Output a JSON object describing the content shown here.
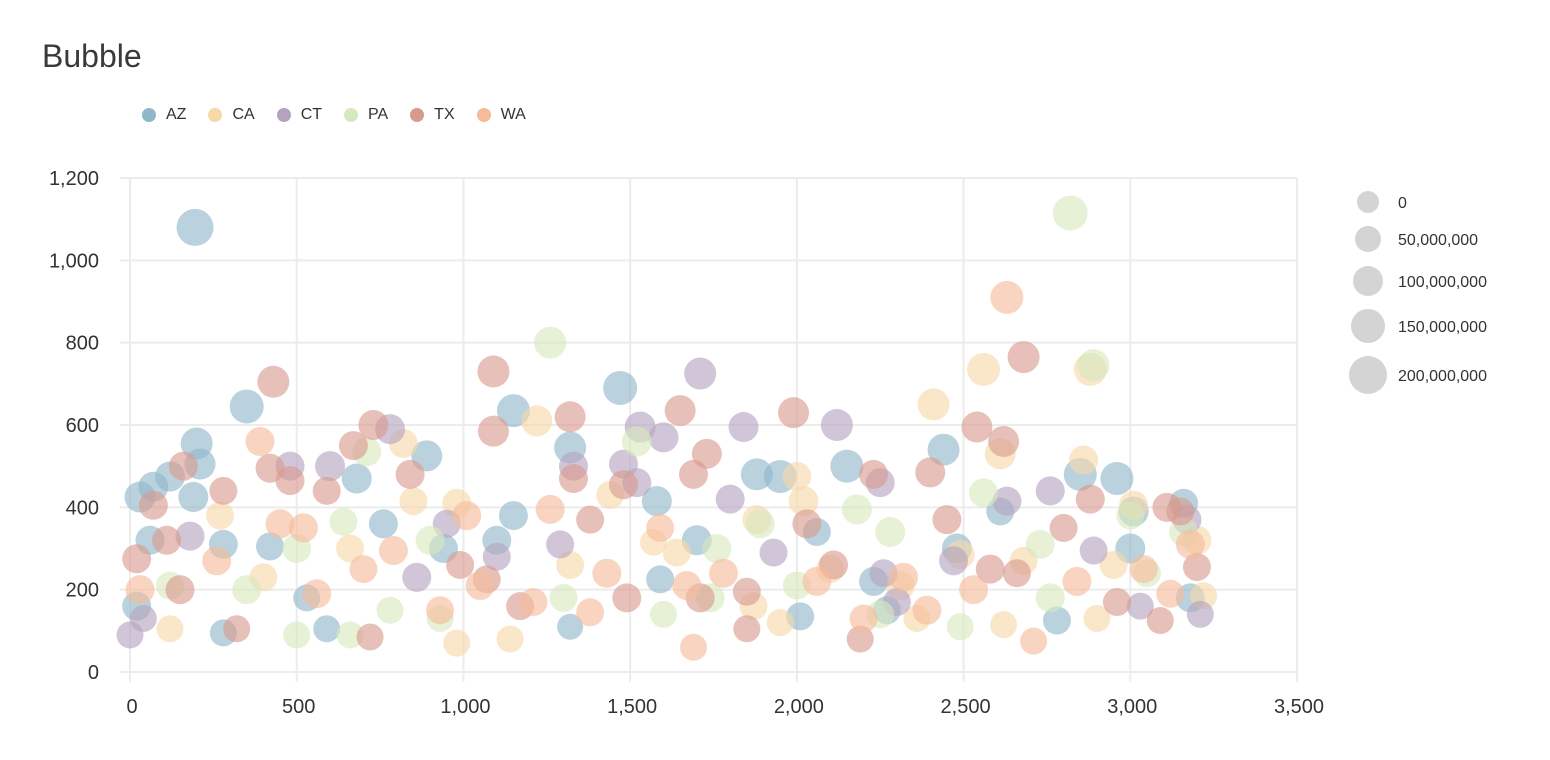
{
  "chart_data": {
    "type": "scatter",
    "variant": "bubble",
    "title": "Bubble",
    "xlabel": "",
    "ylabel": "",
    "xlim": [
      0,
      3500
    ],
    "ylim": [
      0,
      1200
    ],
    "x_ticks": [
      0,
      500,
      1000,
      1500,
      2000,
      2500,
      3000,
      3500
    ],
    "x_tick_labels": [
      "0",
      "500",
      "1,000",
      "1,500",
      "2,000",
      "2,500",
      "3,000",
      "3,500"
    ],
    "y_ticks": [
      0,
      200,
      400,
      600,
      800,
      1000,
      1200
    ],
    "y_tick_labels": [
      "0",
      "200",
      "400",
      "600",
      "800",
      "1,000",
      "1,200"
    ],
    "grid": true,
    "legend_position": "top-left",
    "size_legend_position": "right",
    "size_legend": [
      {
        "label": "0",
        "value": 0
      },
      {
        "label": "50,000,000",
        "value": 50000000
      },
      {
        "label": "100,000,000",
        "value": 100000000
      },
      {
        "label": "150,000,000",
        "value": 150000000
      },
      {
        "label": "200,000,000",
        "value": 200000000
      }
    ],
    "size_max": 200000000,
    "series": [
      {
        "name": "AZ",
        "color": "#8fb6c9",
        "points": [
          [
            195,
            1080,
            190000000
          ],
          [
            350,
            645,
            160000000
          ],
          [
            200,
            555,
            140000000
          ],
          [
            210,
            505,
            130000000
          ],
          [
            1470,
            690,
            160000000
          ],
          [
            1150,
            635,
            150000000
          ],
          [
            1320,
            545,
            140000000
          ],
          [
            2150,
            500,
            150000000
          ],
          [
            1580,
            415,
            120000000
          ],
          [
            1950,
            475,
            150000000
          ],
          [
            1880,
            480,
            140000000
          ],
          [
            2440,
            540,
            140000000
          ],
          [
            2960,
            470,
            150000000
          ],
          [
            2850,
            480,
            150000000
          ],
          [
            890,
            525,
            130000000
          ],
          [
            120,
            475,
            120000000
          ],
          [
            30,
            425,
            130000000
          ],
          [
            70,
            450,
            120000000
          ],
          [
            190,
            425,
            120000000
          ],
          [
            680,
            470,
            120000000
          ],
          [
            760,
            360,
            110000000
          ],
          [
            1150,
            380,
            110000000
          ],
          [
            3010,
            390,
            120000000
          ],
          [
            3160,
            410,
            110000000
          ],
          [
            2610,
            390,
            100000000
          ],
          [
            60,
            320,
            110000000
          ],
          [
            280,
            310,
            110000000
          ],
          [
            530,
            180,
            90000000
          ],
          [
            20,
            160,
            110000000
          ],
          [
            590,
            105,
            90000000
          ],
          [
            280,
            95,
            90000000
          ],
          [
            1320,
            110,
            80000000
          ],
          [
            2010,
            135,
            100000000
          ],
          [
            2780,
            125,
            100000000
          ],
          [
            3180,
            180,
            110000000
          ],
          [
            940,
            300,
            110000000
          ],
          [
            1590,
            225,
            100000000
          ],
          [
            2230,
            220,
            110000000
          ],
          [
            2480,
            300,
            120000000
          ],
          [
            3000,
            300,
            120000000
          ],
          [
            420,
            305,
            100000000
          ],
          [
            1100,
            320,
            110000000
          ],
          [
            1700,
            320,
            120000000
          ],
          [
            2060,
            340,
            100000000
          ],
          [
            2270,
            150,
            100000000
          ]
        ]
      },
      {
        "name": "CA",
        "color": "#f7d8a9",
        "points": [
          [
            2560,
            735,
            150000000
          ],
          [
            2880,
            735,
            150000000
          ],
          [
            1220,
            610,
            130000000
          ],
          [
            2410,
            650,
            140000000
          ],
          [
            2610,
            530,
            130000000
          ],
          [
            2860,
            515,
            110000000
          ],
          [
            2000,
            475,
            110000000
          ],
          [
            2020,
            415,
            120000000
          ],
          [
            1440,
            430,
            100000000
          ],
          [
            3010,
            405,
            110000000
          ],
          [
            820,
            555,
            110000000
          ],
          [
            850,
            415,
            100000000
          ],
          [
            980,
            410,
            110000000
          ],
          [
            270,
            380,
            100000000
          ],
          [
            1570,
            315,
            90000000
          ],
          [
            1880,
            370,
            110000000
          ],
          [
            2490,
            285,
            110000000
          ],
          [
            2950,
            260,
            100000000
          ],
          [
            3200,
            320,
            110000000
          ],
          [
            3220,
            185,
            90000000
          ],
          [
            120,
            105,
            90000000
          ],
          [
            980,
            70,
            90000000
          ],
          [
            1140,
            80,
            90000000
          ],
          [
            1640,
            290,
            100000000
          ],
          [
            2100,
            250,
            100000000
          ],
          [
            2680,
            270,
            100000000
          ],
          [
            1870,
            160,
            100000000
          ],
          [
            2310,
            210,
            110000000
          ],
          [
            400,
            230,
            100000000
          ],
          [
            660,
            300,
            100000000
          ],
          [
            1320,
            260,
            100000000
          ],
          [
            2360,
            130,
            90000000
          ],
          [
            1950,
            120,
            90000000
          ],
          [
            2620,
            115,
            90000000
          ],
          [
            2900,
            130,
            90000000
          ]
        ]
      },
      {
        "name": "CT",
        "color": "#b5a3be",
        "points": [
          [
            1710,
            725,
            140000000
          ],
          [
            2120,
            600,
            140000000
          ],
          [
            1530,
            595,
            130000000
          ],
          [
            1840,
            595,
            120000000
          ],
          [
            1600,
            570,
            120000000
          ],
          [
            780,
            590,
            120000000
          ],
          [
            600,
            500,
            120000000
          ],
          [
            480,
            500,
            110000000
          ],
          [
            1480,
            505,
            110000000
          ],
          [
            1330,
            500,
            110000000
          ],
          [
            1800,
            420,
            110000000
          ],
          [
            2250,
            460,
            110000000
          ],
          [
            2760,
            440,
            110000000
          ],
          [
            2630,
            415,
            110000000
          ],
          [
            3170,
            370,
            110000000
          ],
          [
            1290,
            310,
            100000000
          ],
          [
            860,
            230,
            110000000
          ],
          [
            180,
            330,
            110000000
          ],
          [
            950,
            360,
            100000000
          ],
          [
            0,
            90,
            90000000
          ],
          [
            40,
            130,
            90000000
          ],
          [
            1930,
            290,
            100000000
          ],
          [
            2470,
            270,
            110000000
          ],
          [
            2890,
            295,
            100000000
          ],
          [
            2300,
            170,
            100000000
          ],
          [
            3210,
            140,
            90000000
          ],
          [
            1520,
            460,
            110000000
          ],
          [
            1100,
            280,
            100000000
          ],
          [
            2260,
            240,
            100000000
          ],
          [
            3030,
            160,
            90000000
          ]
        ]
      },
      {
        "name": "PA",
        "color": "#d6e8bd",
        "points": [
          [
            2820,
            1115,
            170000000
          ],
          [
            1260,
            800,
            140000000
          ],
          [
            2890,
            745,
            140000000
          ],
          [
            1520,
            560,
            120000000
          ],
          [
            2180,
            395,
            120000000
          ],
          [
            1890,
            360,
            110000000
          ],
          [
            2280,
            340,
            120000000
          ],
          [
            2560,
            435,
            110000000
          ],
          [
            640,
            365,
            100000000
          ],
          [
            710,
            535,
            110000000
          ],
          [
            3160,
            340,
            110000000
          ],
          [
            3000,
            380,
            100000000
          ],
          [
            2730,
            310,
            110000000
          ],
          [
            1760,
            300,
            110000000
          ],
          [
            900,
            320,
            110000000
          ],
          [
            500,
            300,
            110000000
          ],
          [
            350,
            200,
            110000000
          ],
          [
            120,
            210,
            100000000
          ],
          [
            660,
            90,
            90000000
          ],
          [
            500,
            90,
            90000000
          ],
          [
            930,
            130,
            90000000
          ],
          [
            1600,
            140,
            90000000
          ],
          [
            1740,
            180,
            110000000
          ],
          [
            2000,
            210,
            100000000
          ],
          [
            2250,
            140,
            100000000
          ],
          [
            2490,
            110,
            90000000
          ],
          [
            2760,
            180,
            110000000
          ],
          [
            3050,
            240,
            100000000
          ],
          [
            1300,
            180,
            100000000
          ],
          [
            780,
            150,
            90000000
          ]
        ]
      },
      {
        "name": "TX",
        "color": "#d89a8e",
        "points": [
          [
            430,
            705,
            140000000
          ],
          [
            1090,
            730,
            140000000
          ],
          [
            2680,
            765,
            140000000
          ],
          [
            1990,
            630,
            130000000
          ],
          [
            1650,
            635,
            130000000
          ],
          [
            1320,
            620,
            130000000
          ],
          [
            1090,
            585,
            130000000
          ],
          [
            2540,
            595,
            130000000
          ],
          [
            2620,
            560,
            130000000
          ],
          [
            1730,
            530,
            120000000
          ],
          [
            730,
            600,
            120000000
          ],
          [
            670,
            550,
            110000000
          ],
          [
            1690,
            480,
            110000000
          ],
          [
            1330,
            470,
            110000000
          ],
          [
            2400,
            485,
            120000000
          ],
          [
            2230,
            480,
            110000000
          ],
          [
            2880,
            420,
            110000000
          ],
          [
            3110,
            400,
            110000000
          ],
          [
            3150,
            390,
            100000000
          ],
          [
            480,
            465,
            110000000
          ],
          [
            840,
            480,
            110000000
          ],
          [
            280,
            440,
            100000000
          ],
          [
            590,
            440,
            100000000
          ],
          [
            1480,
            455,
            110000000
          ],
          [
            420,
            495,
            110000000
          ],
          [
            160,
            500,
            110000000
          ],
          [
            70,
            405,
            110000000
          ],
          [
            110,
            320,
            110000000
          ],
          [
            20,
            275,
            110000000
          ],
          [
            1070,
            225,
            100000000
          ],
          [
            1170,
            160,
            100000000
          ],
          [
            1490,
            180,
            110000000
          ],
          [
            1850,
            195,
            100000000
          ],
          [
            2030,
            360,
            110000000
          ],
          [
            2110,
            260,
            110000000
          ],
          [
            2450,
            370,
            110000000
          ],
          [
            2580,
            250,
            110000000
          ],
          [
            2660,
            240,
            100000000
          ],
          [
            2800,
            350,
            100000000
          ],
          [
            2960,
            170,
            100000000
          ],
          [
            3090,
            125,
            90000000
          ],
          [
            3200,
            255,
            100000000
          ],
          [
            2190,
            80,
            90000000
          ],
          [
            1850,
            105,
            90000000
          ],
          [
            1710,
            180,
            110000000
          ],
          [
            990,
            260,
            100000000
          ],
          [
            720,
            85,
            90000000
          ],
          [
            320,
            105,
            90000000
          ],
          [
            150,
            200,
            110000000
          ],
          [
            1380,
            370,
            100000000
          ]
        ]
      },
      {
        "name": "WA",
        "color": "#f5bc9b",
        "points": [
          [
            2630,
            910,
            150000000
          ],
          [
            390,
            560,
            110000000
          ],
          [
            450,
            360,
            110000000
          ],
          [
            30,
            200,
            110000000
          ],
          [
            260,
            270,
            110000000
          ],
          [
            520,
            350,
            110000000
          ],
          [
            790,
            295,
            110000000
          ],
          [
            1050,
            210,
            110000000
          ],
          [
            1210,
            170,
            100000000
          ],
          [
            1430,
            240,
            110000000
          ],
          [
            1670,
            210,
            110000000
          ],
          [
            1780,
            240,
            110000000
          ],
          [
            2060,
            220,
            110000000
          ],
          [
            2320,
            230,
            110000000
          ],
          [
            2530,
            200,
            110000000
          ],
          [
            2710,
            75,
            90000000
          ],
          [
            2840,
            220,
            110000000
          ],
          [
            3120,
            190,
            100000000
          ],
          [
            3180,
            310,
            110000000
          ],
          [
            1690,
            60,
            90000000
          ],
          [
            1010,
            380,
            110000000
          ],
          [
            1590,
            350,
            100000000
          ],
          [
            1260,
            395,
            110000000
          ],
          [
            560,
            190,
            110000000
          ],
          [
            700,
            250,
            100000000
          ],
          [
            930,
            150,
            100000000
          ],
          [
            1380,
            145,
            100000000
          ],
          [
            2200,
            130,
            100000000
          ],
          [
            2390,
            150,
            110000000
          ],
          [
            3040,
            250,
            100000000
          ]
        ]
      }
    ]
  }
}
